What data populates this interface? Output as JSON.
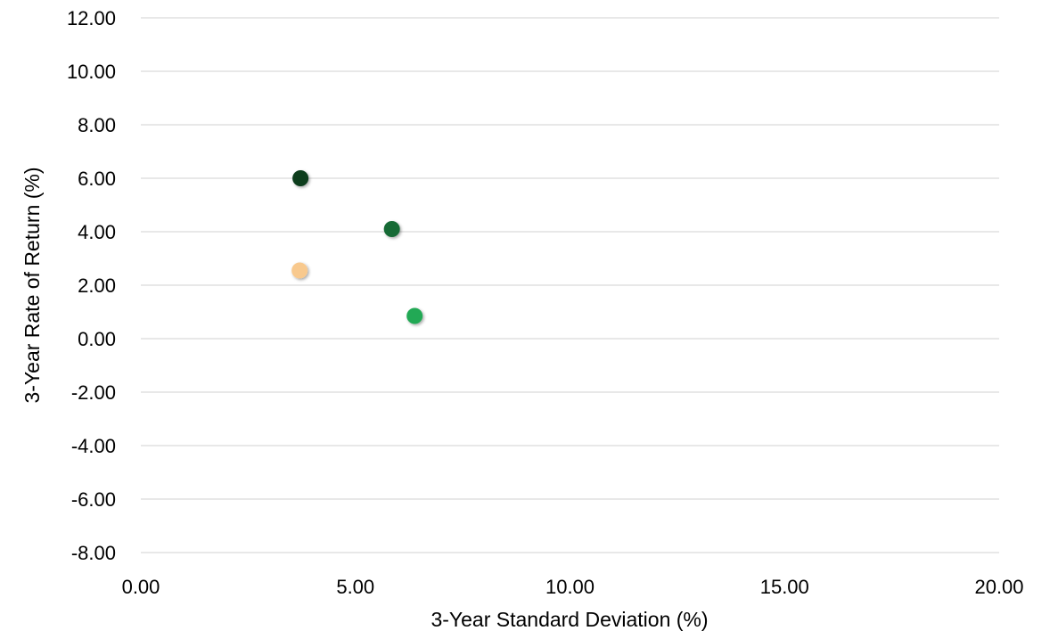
{
  "chart_data": {
    "type": "scatter",
    "title": "",
    "xlabel": "3-Year Standard Deviation (%)",
    "ylabel": "3-Year Rate of Return (%)",
    "xlim": [
      0,
      20
    ],
    "ylim": [
      -8,
      12
    ],
    "xticks": [
      "0.00",
      "5.00",
      "10.00",
      "15.00",
      "20.00"
    ],
    "yticks": [
      "12.00",
      "10.00",
      "8.00",
      "6.00",
      "4.00",
      "2.00",
      "0.00",
      "-2.00",
      "-4.00",
      "-6.00",
      "-8.00"
    ],
    "grid": "horizontal",
    "legend": "none",
    "points": [
      {
        "x": 3.72,
        "y": 6.0,
        "color": "#0b3d1f"
      },
      {
        "x": 5.85,
        "y": 4.1,
        "color": "#176b36"
      },
      {
        "x": 3.7,
        "y": 2.55,
        "color": "#f8c98e"
      },
      {
        "x": 6.38,
        "y": 0.85,
        "color": "#22a955"
      }
    ]
  }
}
